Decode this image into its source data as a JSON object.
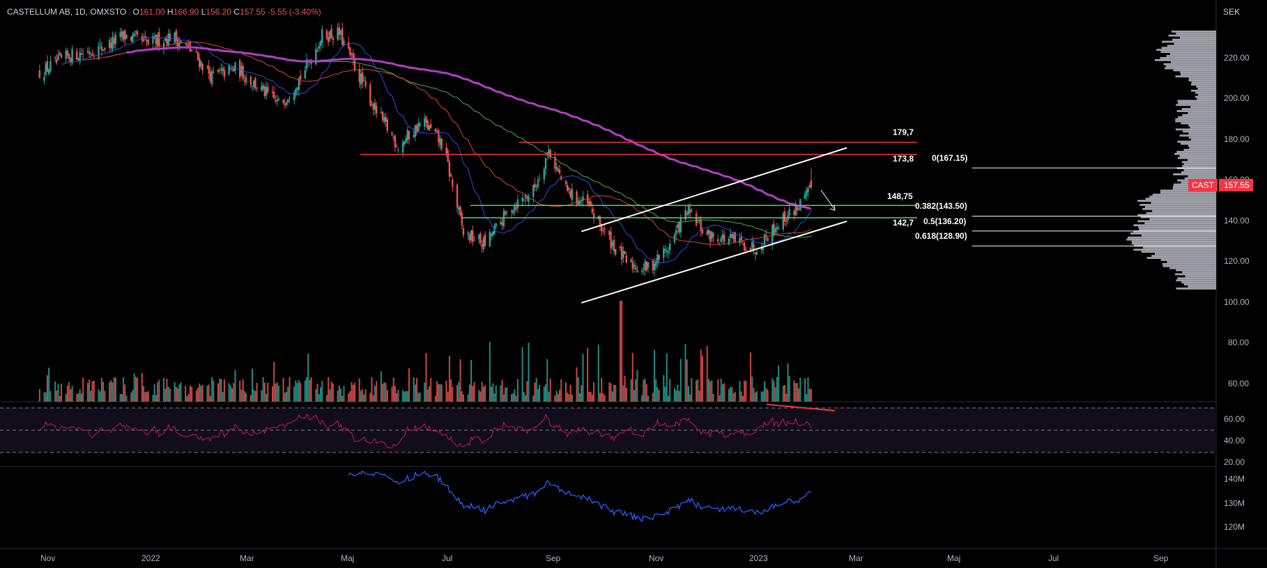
{
  "header": {
    "symbol": "CASTELLUM AB, 1D, OMXSTO",
    "open_label": "O",
    "open_value": "161.00",
    "high_label": "H",
    "high_value": "166.90",
    "low_label": "L",
    "low_value": "156.20",
    "close_label": "C",
    "close_value": "157.55",
    "change": "-5.55",
    "change_pct": "(-3.40%)"
  },
  "price_axis": {
    "unit": "SEK",
    "ticks": [
      "220.00",
      "200.00",
      "180.00",
      "160.00",
      "140.00",
      "120.00",
      "100.00",
      "80.00",
      "60.00"
    ]
  },
  "price_tag": {
    "symbol": "CAST",
    "price": "157.55"
  },
  "rsi_axis": {
    "ticks": [
      "60.00",
      "40.00",
      "20.00"
    ]
  },
  "vol_axis": {
    "ticks": [
      "140M",
      "130M",
      "120M"
    ]
  },
  "time_axis": {
    "ticks": [
      "Nov",
      "2022",
      "Mar",
      "Maj",
      "Jul",
      "Sep",
      "Nov",
      "2023",
      "Mar",
      "Maj",
      "Jul",
      "Sep"
    ]
  },
  "levels": {
    "resistance_top": "179,7",
    "resistance": "173,8",
    "support_upper": "148,75",
    "support_lower": "142,7"
  },
  "fib": {
    "f0": "0(167.15)",
    "f382": "0.382(143.50)",
    "f5": "0.5(136.20)",
    "f618": "0.618(128.90)"
  },
  "colors": {
    "up": "#26a69a",
    "down": "#ef5350",
    "ma200": "#b23ec6",
    "ma_blue": "#2f4fe0",
    "ma_red": "#e0452f",
    "ma_green": "#4caf50",
    "rsi": "#c2185b",
    "obv": "#2962ff",
    "resistance": "#f23645",
    "support": "#5bd75b",
    "trendline": "#ffffff",
    "volume_profile": "#b2b5be",
    "price_tag": "#f23645"
  },
  "chart_data": {
    "type": "candlestick",
    "title": "",
    "x_range": [
      "2021-10",
      "2023-09"
    ],
    "y_range": [
      50,
      235
    ],
    "close_path": [
      {
        "date": "2021-10-01",
        "close": 214
      },
      {
        "date": "2021-10-20",
        "close": 222
      },
      {
        "date": "2021-11-10",
        "close": 226
      },
      {
        "date": "2021-11-25",
        "close": 232
      },
      {
        "date": "2021-12-10",
        "close": 228
      },
      {
        "date": "2021-12-25",
        "close": 232
      },
      {
        "date": "2022-01-05",
        "close": 226
      },
      {
        "date": "2022-01-20",
        "close": 212
      },
      {
        "date": "2022-02-05",
        "close": 216
      },
      {
        "date": "2022-02-20",
        "close": 206
      },
      {
        "date": "2022-03-05",
        "close": 198
      },
      {
        "date": "2022-03-20",
        "close": 214
      },
      {
        "date": "2022-04-01",
        "close": 232
      },
      {
        "date": "2022-04-12",
        "close": 233
      },
      {
        "date": "2022-04-25",
        "close": 212
      },
      {
        "date": "2022-05-05",
        "close": 196
      },
      {
        "date": "2022-05-20",
        "close": 178
      },
      {
        "date": "2022-06-05",
        "close": 190
      },
      {
        "date": "2022-06-18",
        "close": 178
      },
      {
        "date": "2022-07-01",
        "close": 135
      },
      {
        "date": "2022-07-15",
        "close": 130
      },
      {
        "date": "2022-08-01",
        "close": 148
      },
      {
        "date": "2022-08-15",
        "close": 156
      },
      {
        "date": "2022-08-25",
        "close": 176
      },
      {
        "date": "2022-09-05",
        "close": 156
      },
      {
        "date": "2022-09-20",
        "close": 148
      },
      {
        "date": "2022-10-01",
        "close": 134
      },
      {
        "date": "2022-10-15",
        "close": 120
      },
      {
        "date": "2022-10-28",
        "close": 118
      },
      {
        "date": "2022-11-10",
        "close": 128
      },
      {
        "date": "2022-11-22",
        "close": 146
      },
      {
        "date": "2022-12-05",
        "close": 134
      },
      {
        "date": "2022-12-20",
        "close": 132
      },
      {
        "date": "2023-01-05",
        "close": 128
      },
      {
        "date": "2023-01-20",
        "close": 140
      },
      {
        "date": "2023-02-01",
        "close": 148
      },
      {
        "date": "2023-02-12",
        "close": 157.55
      }
    ],
    "horizontal_levels": [
      179.7,
      173.8,
      148.75,
      142.7
    ],
    "fibonacci": [
      {
        "ratio": 0,
        "price": 167.15
      },
      {
        "ratio": 0.382,
        "price": 143.5
      },
      {
        "ratio": 0.5,
        "price": 136.2
      },
      {
        "ratio": 0.618,
        "price": 128.9
      }
    ],
    "channel": {
      "upper": [
        {
          "date": "2022-09-15",
          "price": 136
        },
        {
          "date": "2023-03-05",
          "price": 177
        }
      ],
      "lower": [
        {
          "date": "2022-09-15",
          "price": 101
        },
        {
          "date": "2023-03-05",
          "price": 141
        }
      ]
    },
    "last_price": 157.55,
    "rsi_levels": [
      70,
      50,
      30
    ],
    "obv_range": [
      115,
      145
    ]
  }
}
